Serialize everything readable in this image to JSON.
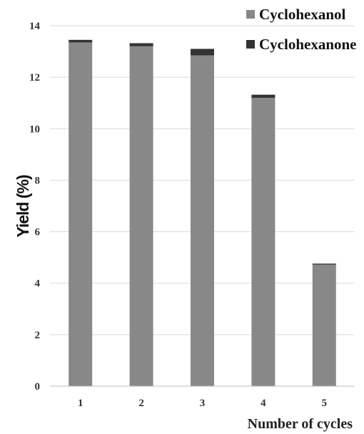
{
  "chart_data": {
    "type": "bar",
    "stacked": true,
    "categories": [
      "1",
      "2",
      "3",
      "4",
      "5"
    ],
    "series": [
      {
        "name": "Cyclohexanol",
        "values": [
          13.35,
          13.2,
          12.85,
          11.2,
          4.72
        ],
        "color": "#888888"
      },
      {
        "name": "Cyclohexanone",
        "values": [
          0.1,
          0.12,
          0.25,
          0.12,
          0.04
        ],
        "color": "#333333"
      }
    ],
    "xlabel": "Number of cycles",
    "ylabel": "Yield (%)",
    "ylim": [
      0,
      14
    ],
    "yticks": [
      0,
      2,
      4,
      6,
      8,
      10,
      12,
      14
    ],
    "grid": true,
    "legend_position": "top-right"
  }
}
